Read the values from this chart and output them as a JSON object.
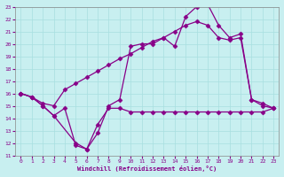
{
  "xlabel": "Windchill (Refroidissement éolien,°C)",
  "ylabel": "",
  "xlim": [
    -0.5,
    23.5
  ],
  "ylim": [
    11,
    23
  ],
  "xticks": [
    0,
    1,
    2,
    3,
    4,
    5,
    6,
    7,
    8,
    9,
    10,
    11,
    12,
    13,
    14,
    15,
    16,
    17,
    18,
    19,
    20,
    21,
    22,
    23
  ],
  "yticks": [
    11,
    12,
    13,
    14,
    15,
    16,
    17,
    18,
    19,
    20,
    21,
    22,
    23
  ],
  "bg_color": "#c8eff0",
  "grid_color": "#a8dfe0",
  "line_color": "#880088",
  "series1_x": [
    0,
    1,
    2,
    3,
    4,
    5,
    6,
    7,
    8,
    9,
    10,
    11,
    12,
    13,
    14,
    15,
    16,
    17,
    18,
    19,
    20,
    21,
    22,
    23
  ],
  "series1_y": [
    16,
    15.7,
    15.0,
    14.2,
    14.8,
    11.8,
    11.5,
    13.5,
    14.8,
    14.8,
    14.5,
    14.5,
    14.5,
    14.5,
    14.5,
    14.5,
    14.5,
    14.5,
    14.5,
    14.5,
    14.5,
    14.5,
    14.5,
    14.8
  ],
  "series2_x": [
    0,
    1,
    2,
    3,
    4,
    5,
    6,
    7,
    8,
    9,
    10,
    11,
    12,
    13,
    14,
    15,
    16,
    17,
    18,
    19,
    20,
    21,
    22,
    23
  ],
  "series2_y": [
    16,
    15.7,
    15.2,
    15.0,
    16.3,
    16.8,
    17.3,
    17.8,
    18.3,
    18.8,
    19.2,
    19.7,
    20.2,
    20.5,
    21.0,
    21.5,
    21.8,
    21.5,
    20.5,
    20.3,
    20.5,
    15.5,
    15.2,
    14.8
  ],
  "series3_x": [
    0,
    1,
    2,
    3,
    5,
    6,
    7,
    8,
    9,
    10,
    11,
    12,
    13,
    14,
    15,
    16,
    17,
    18,
    19,
    20,
    21,
    22,
    23
  ],
  "series3_y": [
    16,
    15.7,
    15.0,
    14.2,
    12.0,
    11.5,
    12.8,
    15.0,
    15.5,
    19.8,
    20.0,
    20.0,
    20.5,
    19.8,
    22.2,
    23.0,
    23.2,
    21.5,
    20.5,
    20.8,
    15.5,
    15.0,
    14.8
  ],
  "marker": "D",
  "markersize": 2.5,
  "linewidth": 0.9
}
